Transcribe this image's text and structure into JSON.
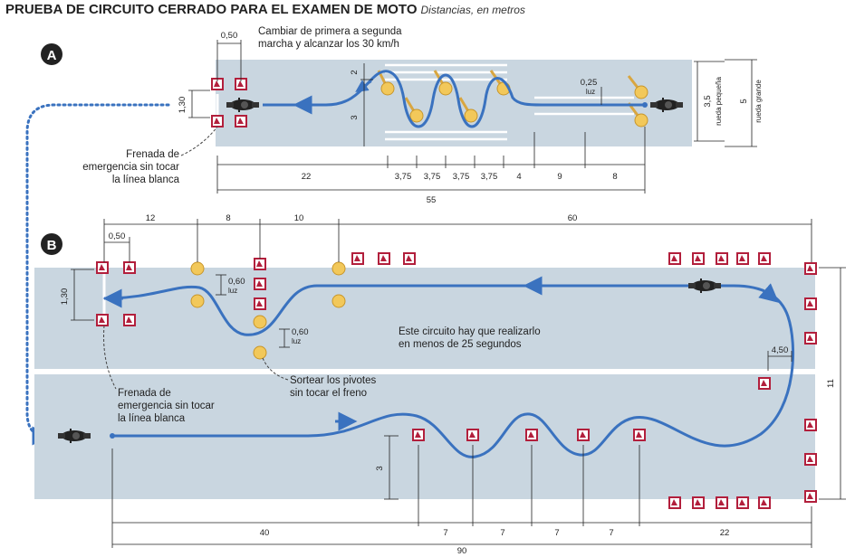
{
  "title": "PRUEBA DE CIRCUITO CERRADO PARA EL EXAMEN DE MOTO",
  "subtitle": "Distancias, en metros",
  "section_a": {
    "badge": "A",
    "note_gear_line1": "Cambiar de primera a segunda",
    "note_gear_line2": "marcha y alcanzar los 30 km/h",
    "note_brake_line1": "Frenada de",
    "note_brake_line2": "emergencia sin tocar",
    "note_brake_line3": "la línea blanca",
    "dims": {
      "top_050": "0,50",
      "left_130": "1,30",
      "v_2": "2",
      "v_3": "3",
      "luz_025": "0,25",
      "luz_label": "luz",
      "r35": "3,5",
      "r35_label": "rueda pequeña",
      "r5": "5",
      "r5_label": "rueda grande",
      "d22": "22",
      "d375a": "3,75",
      "d375b": "3,75",
      "d375c": "3,75",
      "d375d": "3,75",
      "d4": "4",
      "d9": "9",
      "d8": "8",
      "d55": "55"
    }
  },
  "section_b": {
    "badge": "B",
    "note_time_line1": "Este circuito hay que realizarlo",
    "note_time_line2": "en menos de 25 segundos",
    "note_pivots_line1": "Sortear los pivotes",
    "note_pivots_line2": "sin tocar el freno",
    "note_brake_line1": "Frenada de",
    "note_brake_line2": "emergencia sin tocar",
    "note_brake_line3": "la línea blanca",
    "dims": {
      "d12": "12",
      "d8": "8",
      "d10": "10",
      "d60": "60",
      "d050": "0,50",
      "d130": "1,30",
      "d060a": "0,60",
      "luz_a": "luz",
      "d060b": "0,60",
      "luz_b": "luz",
      "d450": "4,50",
      "d11": "11",
      "d3": "3",
      "d40": "40",
      "d7a": "7",
      "d7b": "7",
      "d7c": "7",
      "d7d": "7",
      "d22": "22",
      "d90": "90"
    }
  },
  "colors": {
    "track": "#c9d6e0",
    "path": "#3a72bf",
    "cone": "#b21f3c",
    "pivot": "#f2c85a",
    "text": "#222222"
  },
  "icons": [
    "motorcycle-icon",
    "cone-icon",
    "pivot-icon",
    "direction-arrow-icon"
  ]
}
